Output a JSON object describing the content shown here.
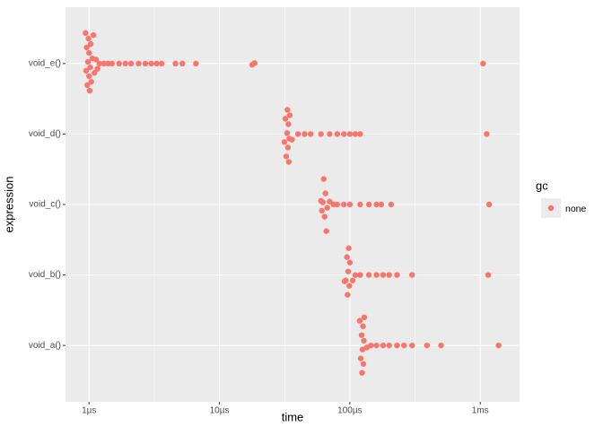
{
  "chart_data": {
    "type": "scatter",
    "x_label": "time",
    "y_label": "expression",
    "xscale": "log",
    "grid": true,
    "minor_grid": true,
    "legend_position": "right",
    "legend_title": "gc",
    "xlim": [
      0.66,
      2000
    ],
    "xticks": [
      {
        "value": 1,
        "label": "1µs"
      },
      {
        "value": 10,
        "label": "10µs"
      },
      {
        "value": 100,
        "label": "100µs"
      },
      {
        "value": 1000,
        "label": "1ms"
      }
    ],
    "categories": [
      "void_a()",
      "void_b()",
      "void_c()",
      "void_d()",
      "void_e()"
    ],
    "series": [
      {
        "name": "none",
        "color": "#F8766D",
        "x": [
          0.94,
          0.95,
          0.96,
          0.97,
          0.98,
          0.99,
          1.0,
          1.0,
          1.01,
          1.02,
          1.03,
          1.04,
          1.06,
          1.08,
          1.1,
          1.13,
          1.16,
          1.2,
          1.3,
          1.4,
          1.5,
          1.7,
          1.9,
          2.1,
          2.4,
          2.7,
          3.0,
          3.3,
          3.6,
          4.6,
          5.2,
          6.6,
          17.8,
          18.6,
          1050,
          31.5,
          32,
          32.5,
          33,
          33.2,
          33.5,
          33.8,
          34,
          34.3,
          34.6,
          36,
          40,
          45,
          50,
          60,
          70,
          80,
          90,
          100,
          110,
          120,
          1120,
          60,
          61,
          62,
          63,
          64,
          65,
          66,
          67,
          70,
          75,
          80,
          90,
          100,
          120,
          140,
          160,
          174,
          207,
          1170,
          91,
          93,
          95,
          96,
          97,
          98,
          99,
          100,
          105,
          110,
          120,
          140,
          160,
          180,
          200,
          230,
          300,
          1150,
          119,
          121,
          123,
          124,
          125,
          126,
          127,
          128,
          129,
          135,
          145,
          160,
          180,
          200,
          230,
          260,
          300,
          390,
          500,
          1380
        ],
        "y": [
          "void_e()",
          "void_e()",
          "void_e()",
          "void_e()",
          "void_e()",
          "void_e()",
          "void_e()",
          "void_e()",
          "void_e()",
          "void_e()",
          "void_e()",
          "void_e()",
          "void_e()",
          "void_e()",
          "void_e()",
          "void_e()",
          "void_e()",
          "void_e()",
          "void_e()",
          "void_e()",
          "void_e()",
          "void_e()",
          "void_e()",
          "void_e()",
          "void_e()",
          "void_e()",
          "void_e()",
          "void_e()",
          "void_e()",
          "void_e()",
          "void_e()",
          "void_e()",
          "void_e()",
          "void_e()",
          "void_e()",
          "void_d()",
          "void_d()",
          "void_d()",
          "void_d()",
          "void_d()",
          "void_d()",
          "void_d()",
          "void_d()",
          "void_d()",
          "void_d()",
          "void_d()",
          "void_d()",
          "void_d()",
          "void_d()",
          "void_d()",
          "void_d()",
          "void_d()",
          "void_d()",
          "void_d()",
          "void_d()",
          "void_d()",
          "void_d()",
          "void_c()",
          "void_c()",
          "void_c()",
          "void_c()",
          "void_c()",
          "void_c()",
          "void_c()",
          "void_c()",
          "void_c()",
          "void_c()",
          "void_c()",
          "void_c()",
          "void_c()",
          "void_c()",
          "void_c()",
          "void_c()",
          "void_c()",
          "void_c()",
          "void_c()",
          "void_b()",
          "void_b()",
          "void_b()",
          "void_b()",
          "void_b()",
          "void_b()",
          "void_b()",
          "void_b()",
          "void_b()",
          "void_b()",
          "void_b()",
          "void_b()",
          "void_b()",
          "void_b()",
          "void_b()",
          "void_b()",
          "void_b()",
          "void_b()",
          "void_a()",
          "void_a()",
          "void_a()",
          "void_a()",
          "void_a()",
          "void_a()",
          "void_a()",
          "void_a()",
          "void_a()",
          "void_a()",
          "void_a()",
          "void_a()",
          "void_a()",
          "void_a()",
          "void_a()",
          "void_a()",
          "void_a()",
          "void_a()",
          "void_a()",
          "void_a()"
        ]
      }
    ]
  }
}
